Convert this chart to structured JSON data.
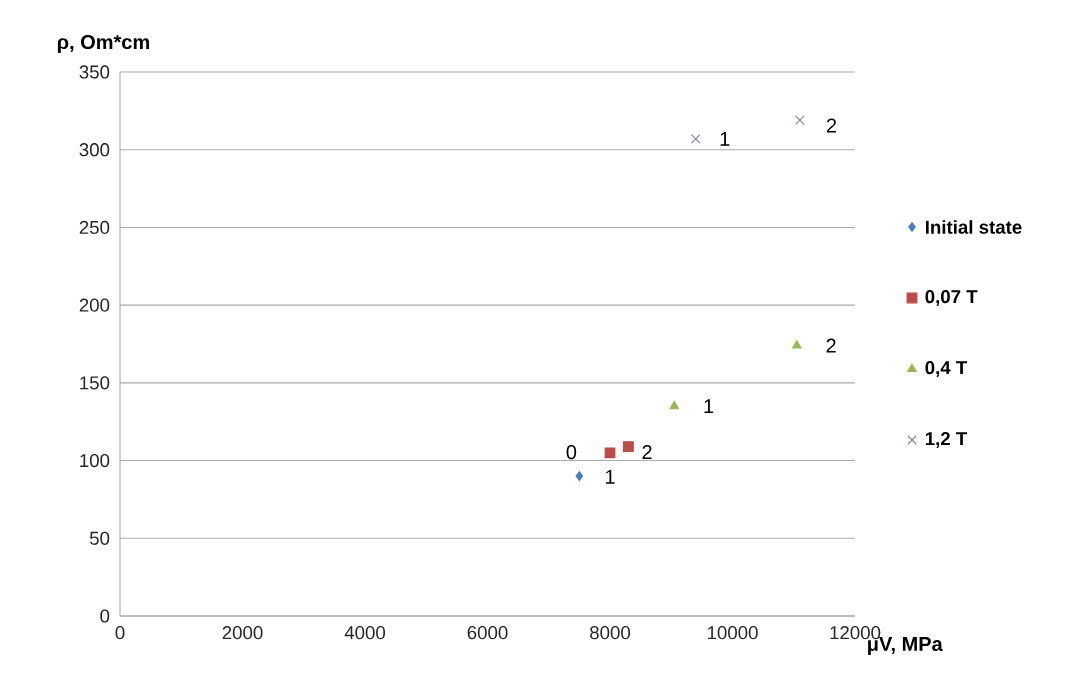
{
  "chart_data": {
    "type": "scatter",
    "xlabel": "μV, MPa",
    "ylabel": "ρ, Om*cm",
    "series": [
      {
        "name": "Initial state",
        "color": "#4a7ebb",
        "marker": "diamond",
        "x": [
          7500
        ],
        "values": [
          90
        ]
      },
      {
        "name": "0,07 T",
        "color": "#be4b48",
        "marker": "square",
        "x": [
          8000,
          8300
        ],
        "values": [
          105,
          109
        ]
      },
      {
        "name": "0,4 T",
        "color": "#98b954",
        "marker": "triangle",
        "x": [
          9050,
          11050
        ],
        "values": [
          135,
          174
        ]
      },
      {
        "name": "1,2 T",
        "color": "#8c7fa8",
        "marker": "cross",
        "x": [
          9400,
          11100
        ],
        "values": [
          307,
          319
        ]
      }
    ],
    "annotations": [
      {
        "text": "0",
        "x": 7500,
        "y": 90
      },
      {
        "text": "1",
        "x": 8000,
        "y": 105
      },
      {
        "text": "2",
        "x": 8300,
        "y": 109
      },
      {
        "text": "1",
        "x": 9050,
        "y": 135
      },
      {
        "text": "2",
        "x": 11050,
        "y": 174
      },
      {
        "text": "1",
        "x": 9400,
        "y": 307
      },
      {
        "text": "2",
        "x": 11100,
        "y": 319
      }
    ],
    "xlim": [
      0,
      12000
    ],
    "ylim": [
      0,
      350
    ],
    "xticks": [
      0,
      2000,
      4000,
      6000,
      8000,
      10000,
      12000
    ],
    "yticks": [
      0,
      50,
      100,
      150,
      200,
      250,
      300,
      350
    ],
    "grid": "y",
    "legend": "right"
  }
}
